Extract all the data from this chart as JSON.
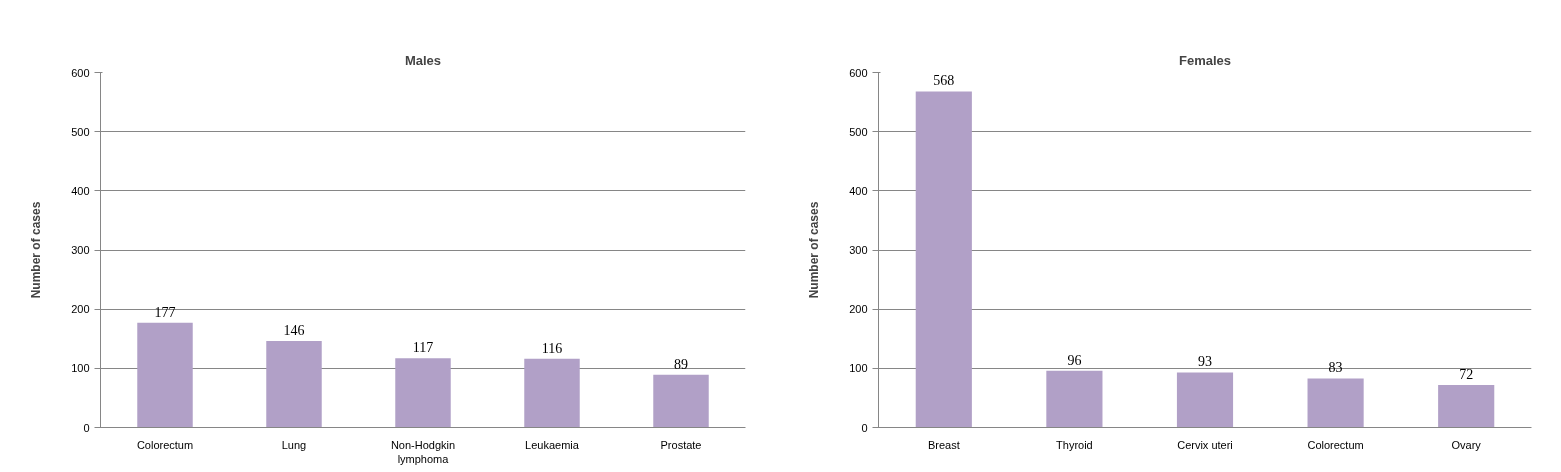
{
  "chart_data": [
    {
      "type": "bar",
      "title": "Males",
      "ylabel": "Number of cases",
      "categories": [
        "Colorectum",
        "Lung",
        "Non-Hodgkin lymphoma",
        "Leukaemia",
        "Prostate"
      ],
      "values": [
        177,
        146,
        117,
        116,
        89
      ],
      "color": "#b1a0c7",
      "ylim": [
        0,
        600
      ],
      "yticks": [
        0,
        100,
        200,
        300,
        400,
        500,
        600
      ],
      "grid": "y",
      "data_labels": true
    },
    {
      "type": "bar",
      "title": "Females",
      "ylabel": "Number of cases",
      "categories": [
        "Breast",
        "Thyroid",
        "Cervix uteri",
        "Colorectum",
        "Ovary"
      ],
      "values": [
        568,
        96,
        93,
        83,
        72
      ],
      "color": "#b1a0c7",
      "ylim": [
        0,
        600
      ],
      "yticks": [
        0,
        100,
        200,
        300,
        400,
        500,
        600
      ],
      "grid": "y",
      "data_labels": true
    }
  ]
}
